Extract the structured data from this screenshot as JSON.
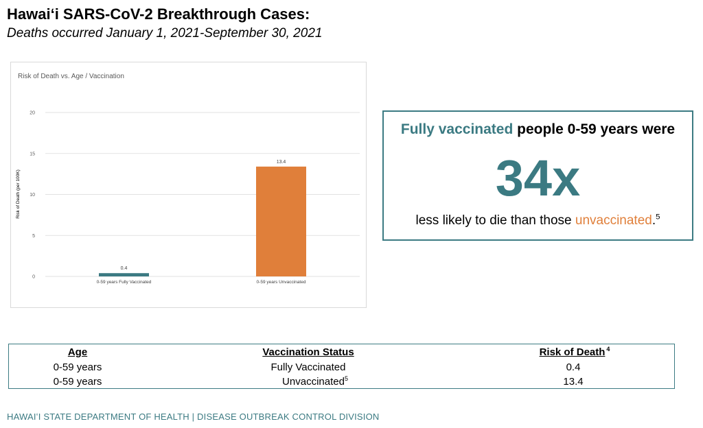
{
  "page": {
    "title": "Hawaiʻi SARS-CoV-2 Breakthrough Cases:",
    "subtitle": "Deaths occurred January 1, 2021-September 30, 2021"
  },
  "chart_data": {
    "type": "bar",
    "title": "Risk of Death vs. Age / Vaccination",
    "xlabel": "",
    "ylabel": "Risk of Death (per 100K)",
    "categories": [
      "0-59 years Fully Vaccinated",
      "0-59 years Unvaccinated"
    ],
    "values": [
      0.4,
      13.4
    ],
    "data_labels": [
      "0.4",
      "13.4"
    ],
    "bar_colors": [
      "#3b7a82",
      "#e07f3a"
    ],
    "ylim": [
      0,
      20
    ],
    "yticks": [
      0,
      5,
      10,
      15,
      20
    ],
    "grid": true,
    "legend": "none"
  },
  "callout": {
    "prefix_highlight": "Fully vaccinated",
    "prefix_rest": " people 0-59 years were",
    "big_number": "34x",
    "suffix_start": "less likely to die than those ",
    "suffix_highlight": "unvaccinated",
    "suffix_end": ".",
    "footnote": "5",
    "colors": {
      "teal": "#3b7a82",
      "orange": "#e07f3a"
    }
  },
  "table": {
    "headers": {
      "age": "Age",
      "status": "Vaccination Status",
      "risk": "Risk of Death",
      "risk_footnote": "4"
    },
    "rows": [
      {
        "age": "0-59 years",
        "status": "Fully Vaccinated",
        "status_footnote": "",
        "risk": "0.4"
      },
      {
        "age": "0-59 years",
        "status": "Unvaccinated",
        "status_footnote": "5",
        "risk": "13.4"
      }
    ]
  },
  "footer": {
    "text": "HAWAIʻI STATE DEPARTMENT OF HEALTH | DISEASE OUTBREAK CONTROL DIVISION"
  }
}
